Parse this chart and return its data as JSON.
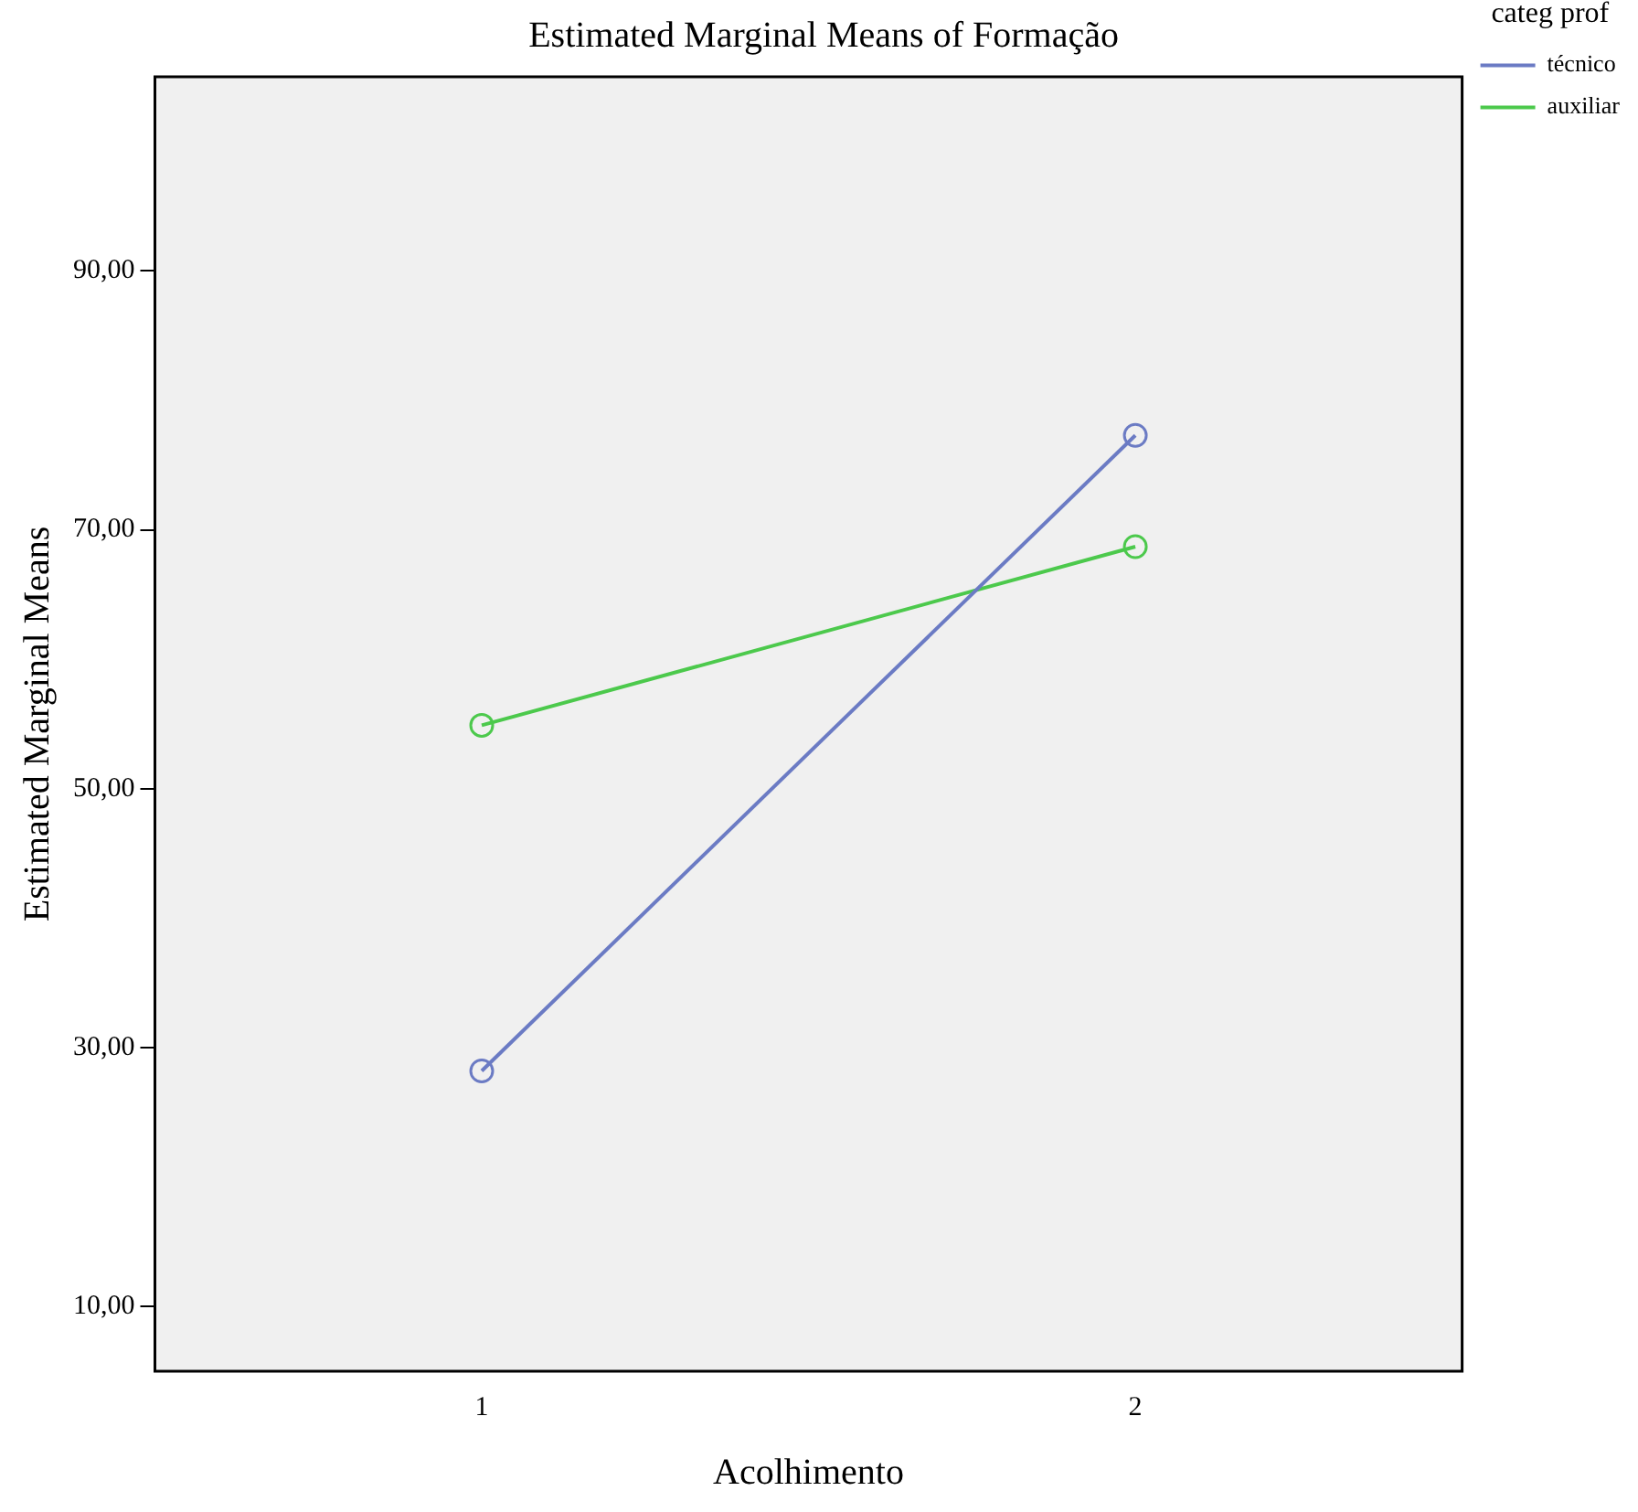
{
  "chart_data": {
    "type": "line",
    "title": "Estimated Marginal Means of Formação",
    "xlabel": "Acolhimento",
    "ylabel": "Estimated Marginal Means",
    "legend_title": "categ prof",
    "categories": [
      "1",
      "2"
    ],
    "series": [
      {
        "name": "técnico",
        "color": "#6b7bc4",
        "values": [
          28.2,
          77.3
        ]
      },
      {
        "name": "auxiliar",
        "color": "#4cc94c",
        "values": [
          54.9,
          68.7
        ]
      }
    ],
    "ylim": [
      5,
      105
    ],
    "yticks": [
      {
        "value": 10,
        "label": "10,00"
      },
      {
        "value": 30,
        "label": "30,00"
      },
      {
        "value": 50,
        "label": "50,00"
      },
      {
        "value": 70,
        "label": "70,00"
      },
      {
        "value": 90,
        "label": "90,00"
      }
    ],
    "grid": false,
    "legend": "right",
    "marker": "circle",
    "line_style": "solid"
  }
}
